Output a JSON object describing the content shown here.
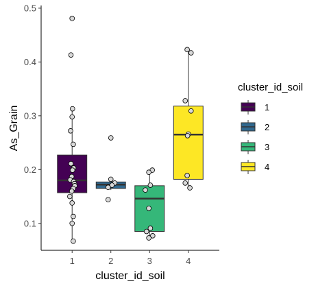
{
  "chart_data": {
    "type": "boxplot",
    "xlabel": "cluster_id_soil",
    "ylabel": "As_Grain",
    "categories": [
      "1",
      "2",
      "3",
      "4"
    ],
    "ylim": [
      0.05,
      0.505
    ],
    "yticks": [
      0.1,
      0.2,
      0.3,
      0.4,
      0.5
    ],
    "ytick_labels": [
      "0.1",
      "0.2",
      "0.3",
      "0.4",
      "0.5"
    ],
    "grid": false,
    "legend": {
      "title": "cluster_id_soil",
      "position": "right",
      "entries": [
        "1",
        "2",
        "3",
        "4"
      ]
    },
    "colors": [
      "#440154",
      "#31688e",
      "#35b779",
      "#fde725"
    ],
    "boxes": [
      {
        "category": "1",
        "whisker_low": 0.067,
        "q1": 0.157,
        "median": 0.18,
        "q3": 0.227,
        "whisker_high": 0.313,
        "points": [
          0.481,
          0.413,
          0.313,
          0.298,
          0.272,
          0.247,
          0.211,
          0.203,
          0.199,
          0.187,
          0.181,
          0.178,
          0.174,
          0.17,
          0.165,
          0.16,
          0.15,
          0.138,
          0.113,
          0.1,
          0.067
        ]
      },
      {
        "category": "2",
        "whisker_low": 0.162,
        "q1": 0.165,
        "median": 0.172,
        "q3": 0.177,
        "whisker_high": 0.183,
        "points": [
          0.259,
          0.182,
          0.175,
          0.171,
          0.167,
          0.144
        ]
      },
      {
        "category": "3",
        "whisker_low": 0.073,
        "q1": 0.085,
        "median": 0.146,
        "q3": 0.17,
        "whisker_high": 0.199,
        "points": [
          0.199,
          0.195,
          0.171,
          0.162,
          0.128,
          0.091,
          0.085,
          0.077,
          0.073
        ]
      },
      {
        "category": "4",
        "whisker_low": 0.164,
        "q1": 0.182,
        "median": 0.265,
        "q3": 0.318,
        "whisker_high": 0.423,
        "points": [
          0.423,
          0.417,
          0.328,
          0.309,
          0.266,
          0.263,
          0.189,
          0.175,
          0.166
        ]
      }
    ],
    "x_jitter": [
      [
        0.0,
        -0.03,
        0.01,
        0.0,
        -0.04,
        0.03,
        -0.03,
        0.04,
        0.01,
        -0.01,
        -0.05,
        0.04,
        0.06,
        0.07,
        0.03,
        -0.01,
        -0.06,
        0.0,
        0.03,
        0.0,
        0.03
      ],
      [
        0.0,
        0.0,
        0.1,
        0.03,
        -0.07,
        -0.07
      ],
      [
        0.07,
        -0.02,
        0.02,
        -0.11,
        -0.02,
        0.02,
        -0.08,
        0.08,
        -0.02
      ],
      [
        -0.03,
        0.07,
        -0.08,
        0.07,
        0.0,
        -0.02,
        -0.03,
        -0.08,
        0.04
      ]
    ]
  }
}
